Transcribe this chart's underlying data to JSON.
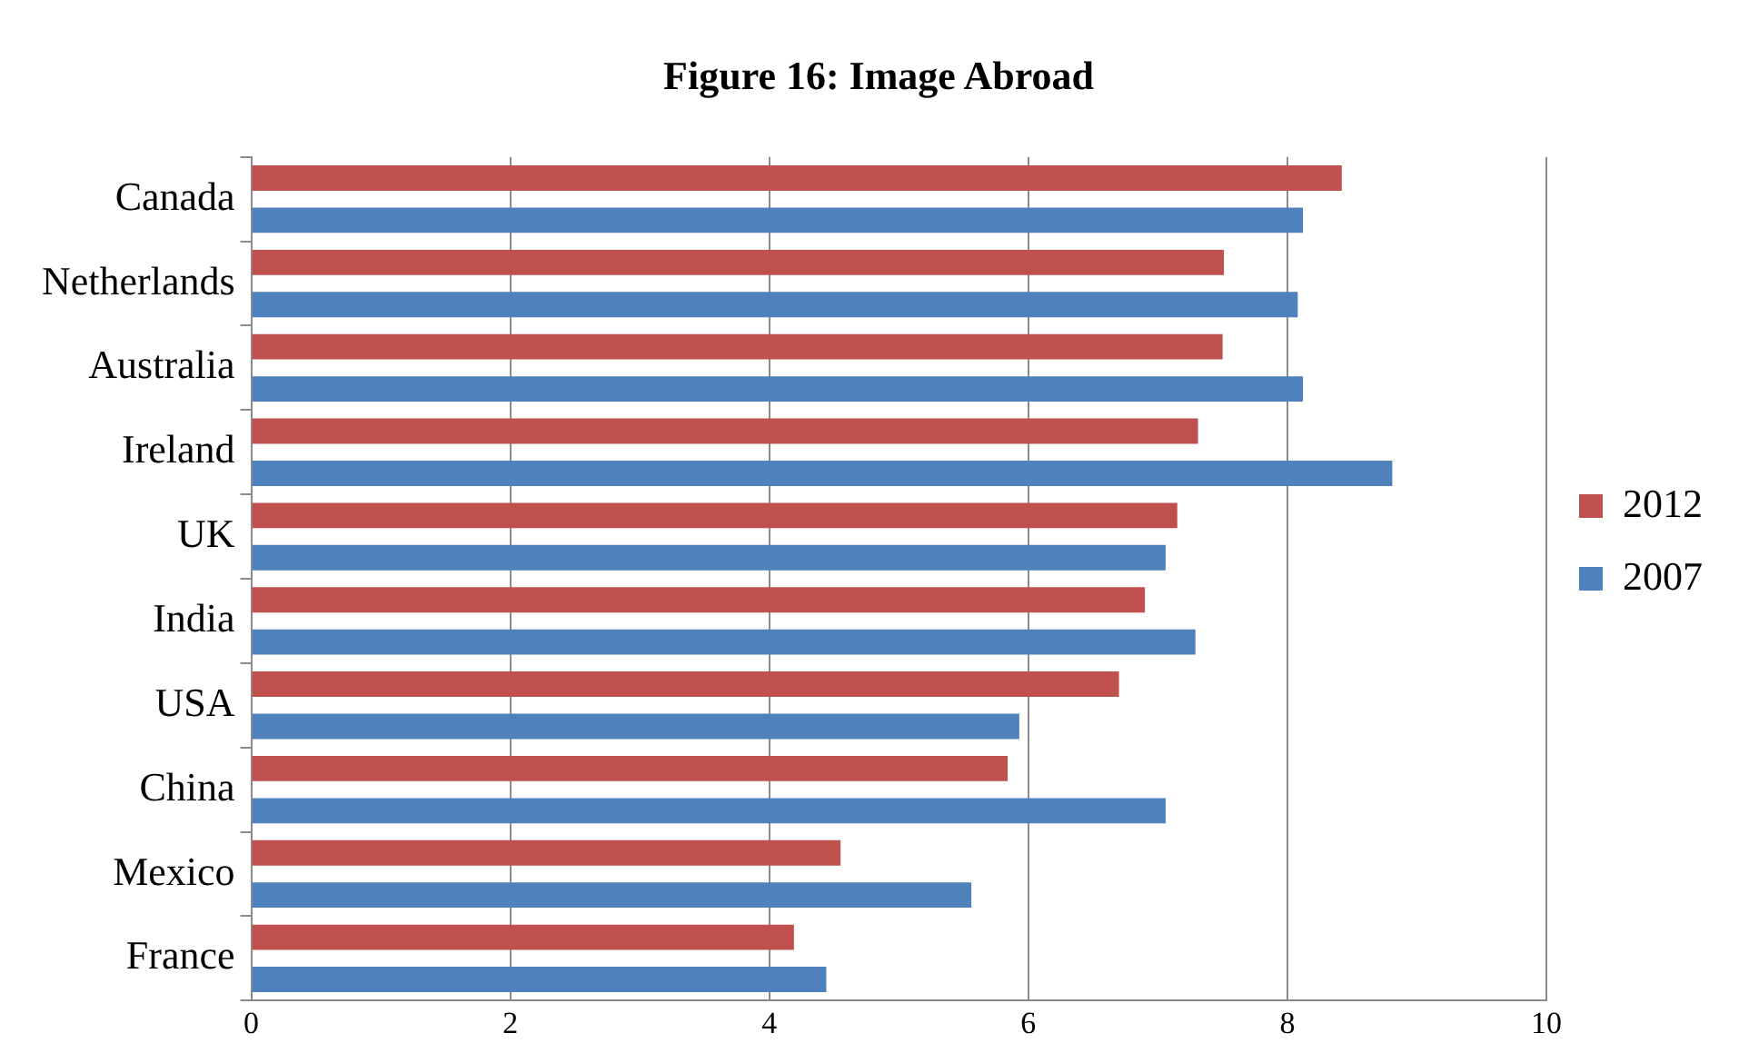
{
  "chart_data": {
    "type": "bar",
    "title": "Figure 16: Image Abroad",
    "orientation": "horizontal",
    "categories": [
      "Canada",
      "Netherlands",
      "Australia",
      "Ireland",
      "UK",
      "India",
      "USA",
      "China",
      "Mexico",
      "France"
    ],
    "series": [
      {
        "name": "2012",
        "color": "#c0504d",
        "values": [
          8.42,
          7.51,
          7.5,
          7.31,
          7.15,
          6.9,
          6.7,
          5.84,
          4.55,
          4.19
        ]
      },
      {
        "name": "2007",
        "color": "#4f81bd",
        "values": [
          8.12,
          8.08,
          8.12,
          8.81,
          7.06,
          7.29,
          5.93,
          7.06,
          5.56,
          4.44
        ]
      }
    ],
    "xlim": [
      0,
      10
    ],
    "xticks": [
      0,
      2,
      4,
      6,
      8,
      10
    ],
    "grid": "x",
    "legend": "right"
  }
}
